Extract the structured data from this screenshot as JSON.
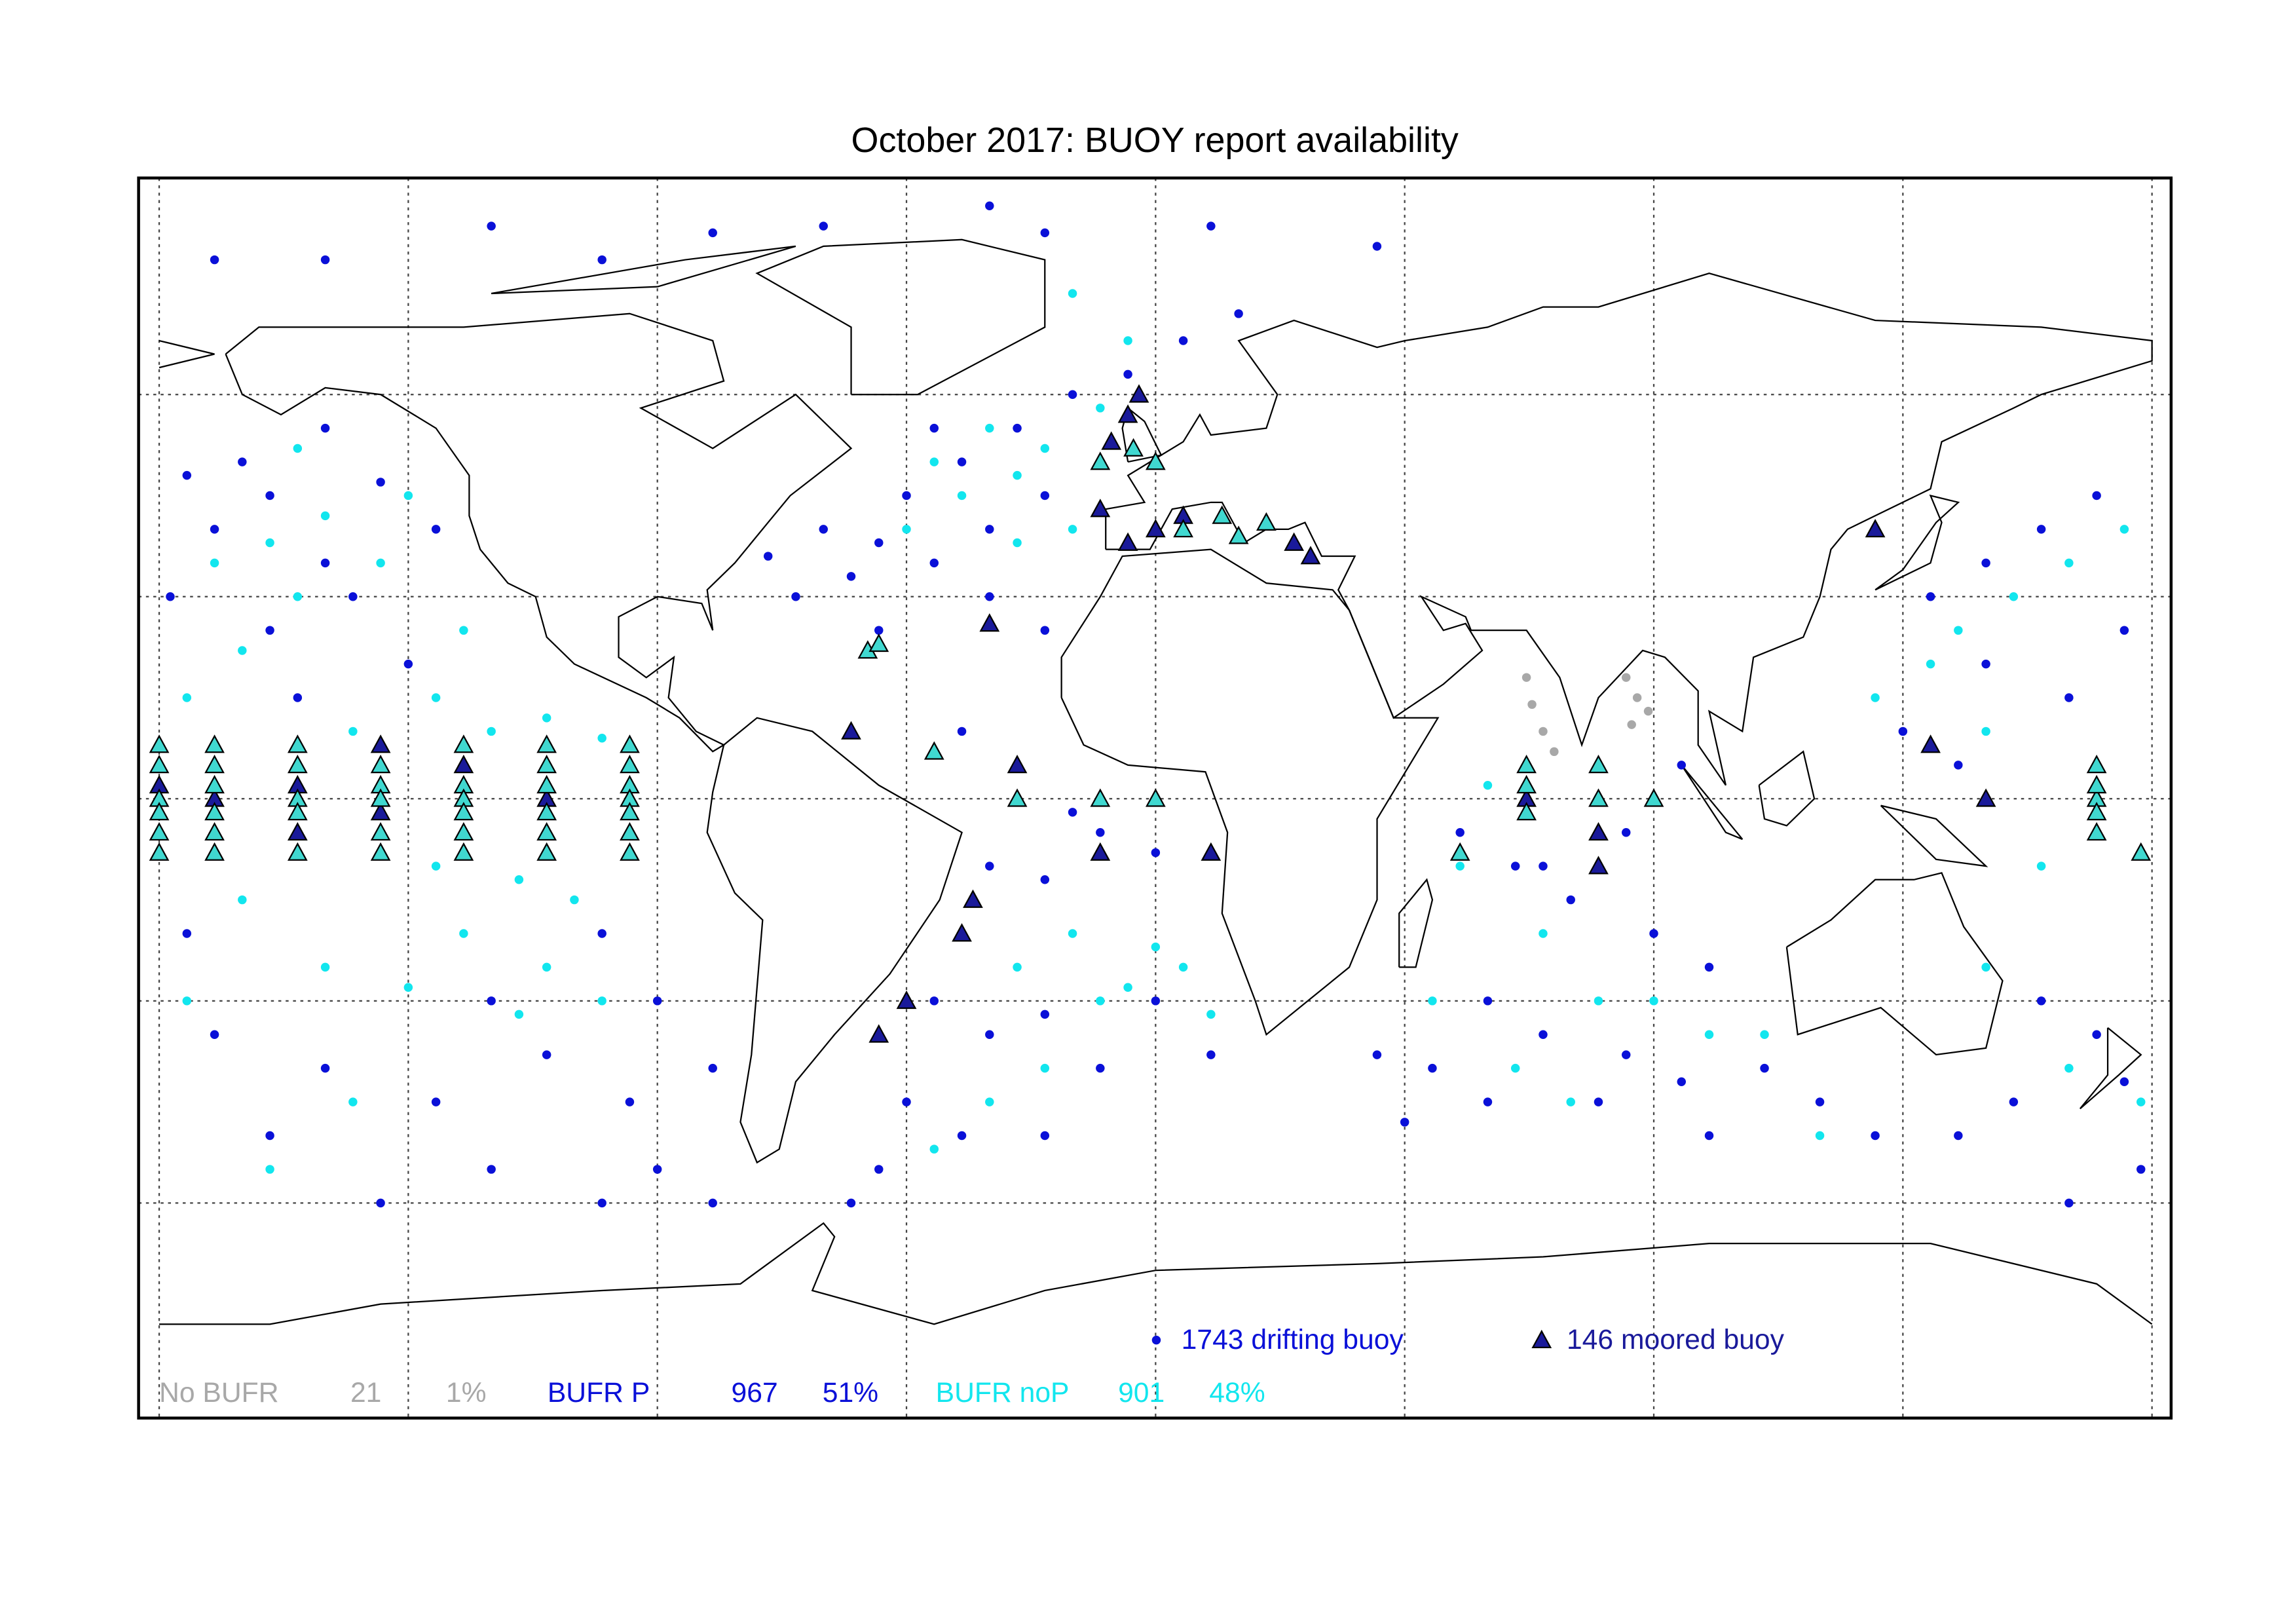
{
  "chart_data": {
    "type": "scatter",
    "title": "October 2017: BUOY report availability",
    "xlim": [
      -180,
      180
    ],
    "ylim": [
      -90,
      90
    ],
    "grid_x": [
      -180,
      -135,
      -90,
      -45,
      0,
      45,
      90,
      135,
      180
    ],
    "grid_y": [
      -60,
      -30,
      0,
      30,
      60
    ],
    "grid": true,
    "series": [
      {
        "marker": "circle",
        "color": "#0a10d8",
        "x": [
          -175,
          -165,
          -160,
          -150,
          -140,
          -130,
          -150,
          -170,
          -145,
          -160,
          -135,
          -178,
          -155,
          -150,
          -120,
          -100,
          -60,
          -20,
          10,
          40,
          -170,
          -80,
          -30,
          -60,
          -50,
          -40,
          -30,
          -45,
          -35,
          -25,
          -20,
          -15,
          -40,
          -55,
          -70,
          -65,
          -30,
          -20,
          -50,
          -10,
          -5,
          5,
          15,
          -35,
          -25,
          -15,
          -30,
          -20,
          -10,
          0,
          -40,
          -30,
          -20,
          -10,
          0,
          10,
          -45,
          -35,
          -20,
          -50,
          -55,
          55,
          65,
          75,
          90,
          100,
          60,
          70,
          85,
          95,
          110,
          50,
          40,
          80,
          120,
          130,
          60,
          45,
          100,
          70,
          85,
          95,
          140,
          150,
          160,
          170,
          150,
          135,
          165,
          175,
          145,
          160,
          170,
          155,
          175,
          145,
          165,
          178,
          -100,
          -90,
          -80,
          -110,
          -120,
          -95,
          -130,
          -150,
          -160,
          -170,
          -175,
          -140,
          -100,
          -90,
          -80,
          -120
        ],
        "y": [
          48,
          50,
          45,
          55,
          47,
          40,
          35,
          40,
          30,
          25,
          20,
          30,
          15,
          80,
          85,
          80,
          85,
          84,
          85,
          82,
          80,
          84,
          88,
          40,
          38,
          35,
          40,
          45,
          50,
          55,
          45,
          60,
          55,
          33,
          36,
          30,
          30,
          25,
          25,
          50,
          63,
          68,
          72,
          10,
          5,
          -2,
          -10,
          -12,
          -5,
          -8,
          -30,
          -35,
          -32,
          -40,
          -30,
          -38,
          -45,
          -50,
          -50,
          -55,
          -60,
          -5,
          -10,
          -15,
          -20,
          -25,
          -30,
          -35,
          -38,
          -42,
          -40,
          -40,
          -38,
          -45,
          -45,
          -50,
          -45,
          -48,
          -50,
          -10,
          -5,
          5,
          30,
          35,
          40,
          45,
          20,
          10,
          15,
          25,
          5,
          -30,
          -35,
          -45,
          -42,
          -50,
          -60,
          -55,
          -20,
          -30,
          -40,
          -38,
          -30,
          -45,
          -45,
          -40,
          -50,
          -35,
          -20,
          -60,
          -60,
          -55,
          -60,
          -55
        ]
      },
      {
        "marker": "circle",
        "color": "#12e6ee",
        "x": [
          -170,
          -160,
          -150,
          -140,
          -155,
          -165,
          -175,
          -145,
          -125,
          -130,
          -135,
          -155,
          -120,
          -110,
          -100,
          -130,
          -115,
          -105,
          -125,
          -110,
          -100,
          -115,
          -135,
          -150,
          -165,
          -175,
          -145,
          -160,
          -45,
          -35,
          -25,
          -20,
          -15,
          -30,
          -40,
          -25,
          -10,
          -5,
          -15,
          -25,
          -15,
          -5,
          0,
          5,
          -10,
          10,
          -20,
          -30,
          -40,
          60,
          55,
          70,
          80,
          90,
          100,
          110,
          65,
          75,
          50,
          120,
          130,
          140,
          145,
          155,
          165,
          175,
          150,
          160,
          150,
          165,
          178
        ],
        "y": [
          35,
          38,
          42,
          35,
          30,
          22,
          15,
          10,
          25,
          15,
          45,
          52,
          10,
          12,
          9,
          -10,
          -12,
          -15,
          -20,
          -25,
          -30,
          -32,
          -28,
          -25,
          -15,
          -30,
          -45,
          -55,
          40,
          45,
          48,
          52,
          40,
          55,
          50,
          38,
          58,
          68,
          75,
          -25,
          -20,
          -28,
          -22,
          -25,
          -30,
          -32,
          -40,
          -45,
          -52,
          2,
          -10,
          -20,
          -30,
          -30,
          -35,
          -35,
          -40,
          -45,
          -30,
          -50,
          15,
          20,
          25,
          30,
          35,
          40,
          10,
          -10,
          -25,
          -40,
          -45
        ]
      },
      {
        "marker": "circle",
        "color": "#a8a8a8",
        "x": [
          67,
          68,
          70,
          72,
          85,
          87,
          89,
          86
        ],
        "y": [
          18,
          14,
          10,
          7,
          18,
          15,
          13,
          11
        ]
      },
      {
        "marker": "triangle",
        "color": "#1a1a9a",
        "x": [
          -170,
          -155,
          -140,
          -125,
          -110,
          -180,
          -155,
          -140,
          -8,
          -5,
          -3,
          -10,
          -5,
          0,
          5,
          25,
          28,
          67,
          80,
          80,
          130,
          140,
          -35,
          -45,
          -50,
          -33,
          -25,
          -10,
          10,
          -55,
          150,
          -30
        ],
        "y": [
          0,
          2,
          -2,
          5,
          0,
          2,
          -5,
          8,
          53,
          57,
          60,
          43,
          38,
          40,
          42,
          38,
          36,
          0,
          -5,
          -10,
          40,
          8,
          -20,
          -30,
          -35,
          -15,
          5,
          -8,
          -8,
          10,
          0,
          26
        ]
      },
      {
        "marker": "triangle",
        "color": "#40d8d0",
        "x": [
          -180,
          -180,
          -180,
          -180,
          -180,
          -180,
          -170,
          -170,
          -170,
          -170,
          -170,
          -170,
          -155,
          -155,
          -155,
          -155,
          -155,
          -140,
          -140,
          -140,
          -140,
          -140,
          -125,
          -125,
          -125,
          -125,
          -125,
          -125,
          -110,
          -110,
          -110,
          -110,
          -110,
          -110,
          -95,
          -95,
          -95,
          -95,
          -95,
          -95,
          -95,
          -10,
          0,
          -4,
          5,
          12,
          15,
          20,
          -52,
          -50,
          -40,
          -25,
          0,
          -10,
          67,
          55,
          67,
          67,
          80,
          80,
          90,
          178,
          170,
          170,
          170,
          170,
          170
        ],
        "y": [
          8,
          5,
          0,
          -2,
          -5,
          -8,
          8,
          5,
          2,
          -2,
          -5,
          -8,
          8,
          5,
          0,
          -2,
          -8,
          5,
          2,
          0,
          -5,
          -8,
          8,
          2,
          0,
          -2,
          -5,
          -8,
          8,
          5,
          2,
          -2,
          -5,
          -8,
          8,
          5,
          2,
          0,
          -2,
          -5,
          -8,
          50,
          50,
          52,
          40,
          42,
          39,
          41,
          22,
          23,
          7,
          0,
          0,
          0,
          -2,
          -8,
          2,
          5,
          0,
          5,
          0,
          -8,
          0,
          -5,
          5,
          -2,
          2
        ]
      }
    ],
    "legend": [
      {
        "marker": "circle",
        "label": "1743 drifting buoy",
        "color": "#0a10d8"
      },
      {
        "marker": "triangle",
        "label": "146 moored buoy",
        "color": "#1a1a9a"
      }
    ],
    "footer": {
      "names": [
        "No BUFR",
        "BUFR P",
        "BUFR noP"
      ],
      "counts": [
        21,
        967,
        901
      ],
      "values": [
        1,
        51,
        48
      ],
      "value_labels": [
        "1%",
        "51%",
        "48%"
      ],
      "colors": [
        "#a8a8a8",
        "#0a10d8",
        "#12e6ee"
      ]
    }
  }
}
